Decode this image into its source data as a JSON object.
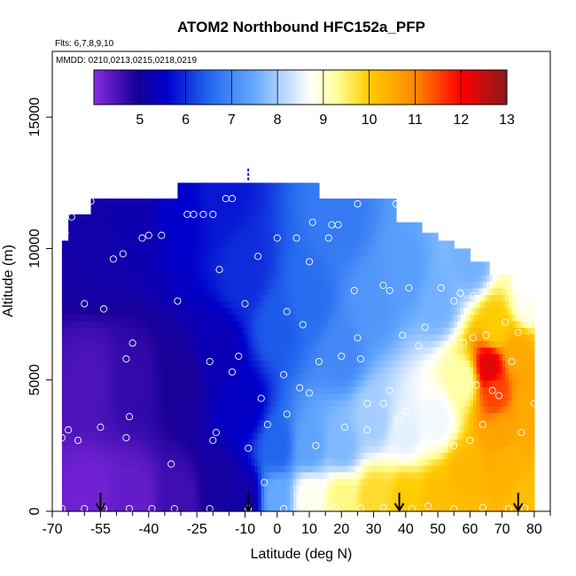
{
  "chart_data": {
    "type": "heatmap",
    "title": "ATOM2 Northbound HFC152a_PFP",
    "subtitle_flights": "Flts: 6,7,8,9,10",
    "subtitle_dates": "MMDD: 0210,0213,0215,0218,0219",
    "xlabel": "Latitude (deg N)",
    "ylabel": "Altitude (m)",
    "xlim": [
      -70,
      85
    ],
    "ylim": [
      0,
      17500
    ],
    "x_ticks": [
      -70,
      -55,
      -40,
      -25,
      -10,
      0,
      10,
      20,
      30,
      40,
      50,
      60,
      70,
      80
    ],
    "x_tick_labels": [
      "-70",
      "-55",
      "-40",
      "-25",
      "-10",
      "0",
      "10",
      "20",
      "30",
      "40",
      "50",
      "60",
      "70",
      "80"
    ],
    "x_minor_ticks": [
      -65,
      -60,
      -50,
      -45,
      -35,
      -30,
      -20,
      -15,
      -5,
      5,
      15,
      25,
      35,
      45,
      55,
      65,
      75,
      85
    ],
    "y_ticks": [
      0,
      5000,
      10000,
      15000
    ],
    "y_tick_labels": [
      "0",
      "5000",
      "10000",
      "15000"
    ],
    "colorbar": {
      "min": 4,
      "max": 13,
      "ticks": [
        5,
        6,
        7,
        8,
        9,
        10,
        11,
        12,
        13
      ],
      "tick_labels": [
        "5",
        "6",
        "7",
        "8",
        "9",
        "10",
        "11",
        "12",
        "13"
      ],
      "colors": [
        "#8a2be2",
        "#1a0099",
        "#0000cc",
        "#2266ee",
        "#66aaff",
        "#ffffff",
        "#ffff99",
        "#ffcc00",
        "#ff8800",
        "#ff0000",
        "#8b1a1a"
      ],
      "color_positions": [
        4,
        4.9,
        5.6,
        6.5,
        7.5,
        8.7,
        9.3,
        10,
        11,
        12,
        13
      ]
    },
    "field_control_points": [
      {
        "lat": -58,
        "alt": 500,
        "value": 4.2
      },
      {
        "lat": -58,
        "alt": 5000,
        "value": 4.5
      },
      {
        "lat": -58,
        "alt": 10000,
        "value": 5.1
      },
      {
        "lat": -45,
        "alt": 500,
        "value": 4.3
      },
      {
        "lat": -45,
        "alt": 5000,
        "value": 4.7
      },
      {
        "lat": -45,
        "alt": 11000,
        "value": 5.2
      },
      {
        "lat": -30,
        "alt": 500,
        "value": 4.6
      },
      {
        "lat": -30,
        "alt": 5000,
        "value": 4.9
      },
      {
        "lat": -30,
        "alt": 11500,
        "value": 5.6
      },
      {
        "lat": -18,
        "alt": 1000,
        "value": 5.0
      },
      {
        "lat": -18,
        "alt": 6000,
        "value": 5.3
      },
      {
        "lat": -18,
        "alt": 12000,
        "value": 5.8
      },
      {
        "lat": -10,
        "alt": 500,
        "value": 5.1
      },
      {
        "lat": -10,
        "alt": 4000,
        "value": 5.5
      },
      {
        "lat": -10,
        "alt": 9000,
        "value": 6.0
      },
      {
        "lat": 0,
        "alt": 500,
        "value": 7.5
      },
      {
        "lat": 0,
        "alt": 2500,
        "value": 6.5
      },
      {
        "lat": 0,
        "alt": 7000,
        "value": 6.4
      },
      {
        "lat": 10,
        "alt": 500,
        "value": 8.8
      },
      {
        "lat": 10,
        "alt": 2500,
        "value": 7.4
      },
      {
        "lat": 10,
        "alt": 8000,
        "value": 6.6
      },
      {
        "lat": 20,
        "alt": 500,
        "value": 9.4
      },
      {
        "lat": 20,
        "alt": 2500,
        "value": 7.7
      },
      {
        "lat": 20,
        "alt": 6000,
        "value": 7.0
      },
      {
        "lat": 20,
        "alt": 11000,
        "value": 6.8
      },
      {
        "lat": 30,
        "alt": 500,
        "value": 9.8
      },
      {
        "lat": 30,
        "alt": 3500,
        "value": 8.0
      },
      {
        "lat": 30,
        "alt": 8000,
        "value": 7.2
      },
      {
        "lat": 40,
        "alt": 500,
        "value": 10.0
      },
      {
        "lat": 40,
        "alt": 3000,
        "value": 8.5
      },
      {
        "lat": 40,
        "alt": 9000,
        "value": 7.3
      },
      {
        "lat": 50,
        "alt": 500,
        "value": 10.2
      },
      {
        "lat": 50,
        "alt": 3500,
        "value": 8.6
      },
      {
        "lat": 50,
        "alt": 8000,
        "value": 7.6
      },
      {
        "lat": 58,
        "alt": 1500,
        "value": 10.3
      },
      {
        "lat": 58,
        "alt": 5000,
        "value": 9.2
      },
      {
        "lat": 60,
        "alt": 9500,
        "value": 7.6
      },
      {
        "lat": 66,
        "alt": 5500,
        "value": 12.3
      },
      {
        "lat": 68,
        "alt": 4500,
        "value": 11.5
      },
      {
        "lat": 68,
        "alt": 7000,
        "value": 10.0
      },
      {
        "lat": 70,
        "alt": 3000,
        "value": 10.6
      },
      {
        "lat": 72,
        "alt": 2000,
        "value": 10.4
      },
      {
        "lat": 75,
        "alt": 6000,
        "value": 10.5
      },
      {
        "lat": 78,
        "alt": 8000,
        "value": 8.8
      },
      {
        "lat": 78,
        "alt": 4000,
        "value": 10.5
      },
      {
        "lat": 78,
        "alt": 500,
        "value": 10.2
      }
    ],
    "coverage": [
      {
        "lat_min": -67,
        "lat_max": -65,
        "alt_top": 10300
      },
      {
        "lat_min": -65,
        "lat_max": -58,
        "alt_top": 11300
      },
      {
        "lat_min": -58,
        "lat_max": -31,
        "alt_top": 11900
      },
      {
        "lat_min": -31,
        "lat_max": 13,
        "alt_top": 12500
      },
      {
        "lat_min": 13,
        "lat_max": 37,
        "alt_top": 11900
      },
      {
        "lat_min": 37,
        "lat_max": 45,
        "alt_top": 11000
      },
      {
        "lat_min": 45,
        "lat_max": 50,
        "alt_top": 10600
      },
      {
        "lat_min": 50,
        "lat_max": 55,
        "alt_top": 10300
      },
      {
        "lat_min": 55,
        "lat_max": 60,
        "alt_top": 10000
      },
      {
        "lat_min": 60,
        "lat_max": 66,
        "alt_top": 9500
      },
      {
        "lat_min": 66,
        "lat_max": 73,
        "alt_top": 9000
      },
      {
        "lat_min": 73,
        "lat_max": 76,
        "alt_top": 8400
      },
      {
        "lat_min": 76,
        "lat_max": 80,
        "alt_top": 8100
      }
    ],
    "samples": [
      {
        "lat": -67,
        "alt": 100
      },
      {
        "lat": -60,
        "alt": 100
      },
      {
        "lat": -54,
        "alt": 100
      },
      {
        "lat": -46,
        "alt": 100
      },
      {
        "lat": -39,
        "alt": 100
      },
      {
        "lat": -32,
        "alt": 100
      },
      {
        "lat": -21,
        "alt": 100
      },
      {
        "lat": -9,
        "alt": 100
      },
      {
        "lat": 2,
        "alt": 100
      },
      {
        "lat": 11,
        "alt": 100
      },
      {
        "lat": 18,
        "alt": 150
      },
      {
        "lat": 26,
        "alt": 120
      },
      {
        "lat": 33,
        "alt": 150
      },
      {
        "lat": 42,
        "alt": 100
      },
      {
        "lat": 47,
        "alt": 200
      },
      {
        "lat": 55,
        "alt": 100
      },
      {
        "lat": 64,
        "alt": 150
      },
      {
        "lat": 72,
        "alt": 100
      },
      {
        "lat": 77,
        "alt": 120
      },
      {
        "lat": -67,
        "alt": 2800
      },
      {
        "lat": -65,
        "alt": 3100
      },
      {
        "lat": -62,
        "alt": 2700
      },
      {
        "lat": -55,
        "alt": 3200
      },
      {
        "lat": -47,
        "alt": 2800
      },
      {
        "lat": -46,
        "alt": 3600
      },
      {
        "lat": -33,
        "alt": 1800
      },
      {
        "lat": -20,
        "alt": 2700
      },
      {
        "lat": -19,
        "alt": 3000
      },
      {
        "lat": -9,
        "alt": 2400
      },
      {
        "lat": -4,
        "alt": 1100
      },
      {
        "lat": -3,
        "alt": 3300
      },
      {
        "lat": 3,
        "alt": 3700
      },
      {
        "lat": 12,
        "alt": 2500
      },
      {
        "lat": 21,
        "alt": 3200
      },
      {
        "lat": 28,
        "alt": 3100
      },
      {
        "lat": 38,
        "alt": 3500
      },
      {
        "lat": 44,
        "alt": 2400
      },
      {
        "lat": 55,
        "alt": 2500
      },
      {
        "lat": 60,
        "alt": 2700
      },
      {
        "lat": 64,
        "alt": 3300
      },
      {
        "lat": 76,
        "alt": 3000
      },
      {
        "lat": 80,
        "alt": 4100
      },
      {
        "lat": -47,
        "alt": 5800
      },
      {
        "lat": -21,
        "alt": 5700
      },
      {
        "lat": -14,
        "alt": 5300
      },
      {
        "lat": -12,
        "alt": 5900
      },
      {
        "lat": -5,
        "alt": 4300
      },
      {
        "lat": 2,
        "alt": 5200
      },
      {
        "lat": 7,
        "alt": 4700
      },
      {
        "lat": 10,
        "alt": 4500
      },
      {
        "lat": 13,
        "alt": 5700
      },
      {
        "lat": 20,
        "alt": 5900
      },
      {
        "lat": 26,
        "alt": 5800
      },
      {
        "lat": 28,
        "alt": 4100
      },
      {
        "lat": 33,
        "alt": 4100
      },
      {
        "lat": 35,
        "alt": 4600
      },
      {
        "lat": 40,
        "alt": 3800
      },
      {
        "lat": 44,
        "alt": 6300
      },
      {
        "lat": 50,
        "alt": 5600
      },
      {
        "lat": 54,
        "alt": 5700
      },
      {
        "lat": 58,
        "alt": 6400
      },
      {
        "lat": 62,
        "alt": 4800
      },
      {
        "lat": 67,
        "alt": 4600
      },
      {
        "lat": 69,
        "alt": 4400
      },
      {
        "lat": 73,
        "alt": 5700
      },
      {
        "lat": -69,
        "alt": 6400
      },
      {
        "lat": -60,
        "alt": 7900
      },
      {
        "lat": -54,
        "alt": 7700
      },
      {
        "lat": -45,
        "alt": 6400
      },
      {
        "lat": -31,
        "alt": 8000
      },
      {
        "lat": -10,
        "alt": 7900
      },
      {
        "lat": 3,
        "alt": 7600
      },
      {
        "lat": 8,
        "alt": 7100
      },
      {
        "lat": 25,
        "alt": 6600
      },
      {
        "lat": 39,
        "alt": 6700
      },
      {
        "lat": 46,
        "alt": 7000
      },
      {
        "lat": 55,
        "alt": 8000
      },
      {
        "lat": 61,
        "alt": 6600
      },
      {
        "lat": 65,
        "alt": 6700
      },
      {
        "lat": 71,
        "alt": 7200
      },
      {
        "lat": 75,
        "alt": 6800
      },
      {
        "lat": 78,
        "alt": 7100
      },
      {
        "lat": -69,
        "alt": 10100
      },
      {
        "lat": -66,
        "alt": 10600
      },
      {
        "lat": -64,
        "alt": 11200
      },
      {
        "lat": -58,
        "alt": 11800
      },
      {
        "lat": -51,
        "alt": 9600
      },
      {
        "lat": -48,
        "alt": 9800
      },
      {
        "lat": -42,
        "alt": 10400
      },
      {
        "lat": -40,
        "alt": 10500
      },
      {
        "lat": -36,
        "alt": 10500
      },
      {
        "lat": -28,
        "alt": 11300
      },
      {
        "lat": -26,
        "alt": 11300
      },
      {
        "lat": -23,
        "alt": 11300
      },
      {
        "lat": -20,
        "alt": 11300
      },
      {
        "lat": -18,
        "alt": 9200
      },
      {
        "lat": -16,
        "alt": 11900
      },
      {
        "lat": -14,
        "alt": 11900
      },
      {
        "lat": -6,
        "alt": 9700
      },
      {
        "lat": 0,
        "alt": 10400
      },
      {
        "lat": 6,
        "alt": 10400
      },
      {
        "lat": 10,
        "alt": 9500
      },
      {
        "lat": 11,
        "alt": 11000
      },
      {
        "lat": 16,
        "alt": 10400
      },
      {
        "lat": 17,
        "alt": 10900
      },
      {
        "lat": 19,
        "alt": 10900
      },
      {
        "lat": 24,
        "alt": 8400
      },
      {
        "lat": 25,
        "alt": 11700
      },
      {
        "lat": 33,
        "alt": 8600
      },
      {
        "lat": 35,
        "alt": 8400
      },
      {
        "lat": 37,
        "alt": 11700
      },
      {
        "lat": 41,
        "alt": 8500
      },
      {
        "lat": 51,
        "alt": 8500
      },
      {
        "lat": 57,
        "alt": 8300
      },
      {
        "lat": 61,
        "alt": 8200
      },
      {
        "lat": 68,
        "alt": 9600
      },
      {
        "lat": 75,
        "alt": 9300
      },
      {
        "lat": 79,
        "alt": 8500
      }
    ],
    "special_mark": {
      "lat": -9,
      "alt": 12800
    },
    "arrows": [
      -55,
      -9,
      38,
      75
    ]
  }
}
